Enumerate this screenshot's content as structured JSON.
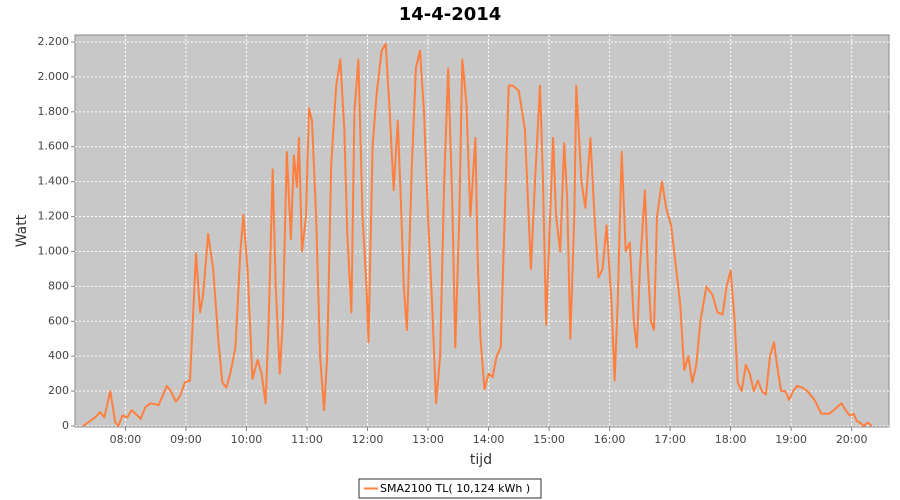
{
  "chart_data": {
    "type": "line",
    "title": "14-4-2014",
    "xlabel": "tijd",
    "ylabel": "Watt",
    "x": [
      "07:18",
      "07:30",
      "07:35",
      "07:39",
      "07:45",
      "07:50",
      "07:53",
      "07:57",
      "08:02",
      "08:06",
      "08:12",
      "08:15",
      "08:20",
      "08:25",
      "08:33",
      "08:41",
      "08:45",
      "08:50",
      "08:54",
      "08:59",
      "09:04",
      "09:10",
      "09:14",
      "09:17",
      "09:22",
      "09:27",
      "09:32",
      "09:36",
      "09:40",
      "09:44",
      "09:49",
      "09:54",
      "09:57",
      "10:01",
      "10:06",
      "10:11",
      "10:15",
      "10:19",
      "10:22",
      "10:26",
      "10:29",
      "10:33",
      "10:36",
      "10:40",
      "10:44",
      "10:47",
      "10:50",
      "10:52",
      "10:55",
      "10:59",
      "11:02",
      "11:05",
      "11:09",
      "11:13",
      "11:17",
      "11:20",
      "11:24",
      "11:29",
      "11:33",
      "11:37",
      "11:40",
      "11:44",
      "11:47",
      "11:51",
      "11:55",
      "11:59",
      "12:01",
      "12:05",
      "12:09",
      "12:14",
      "12:18",
      "12:22",
      "12:26",
      "12:30",
      "12:33",
      "12:36",
      "12:39",
      "12:44",
      "12:48",
      "12:52",
      "12:56",
      "13:00",
      "13:04",
      "13:08",
      "13:12",
      "13:16",
      "13:20",
      "13:24",
      "13:27",
      "13:31",
      "13:34",
      "13:38",
      "13:42",
      "13:47",
      "13:49",
      "13:52",
      "13:56",
      "14:00",
      "14:04",
      "14:08",
      "14:12",
      "14:16",
      "14:20",
      "14:24",
      "14:30",
      "14:36",
      "14:42",
      "14:46",
      "14:51",
      "14:54",
      "14:57",
      "15:01",
      "15:04",
      "15:07",
      "15:11",
      "15:15",
      "15:18",
      "15:21",
      "15:25",
      "15:27",
      "15:32",
      "15:36",
      "15:41",
      "15:45",
      "15:49",
      "15:53",
      "15:57",
      "16:02",
      "16:05",
      "16:08",
      "16:12",
      "16:16",
      "16:20",
      "16:24",
      "16:27",
      "16:30",
      "16:35",
      "16:38",
      "16:41",
      "16:44",
      "16:47",
      "16:52",
      "16:56",
      "17:01",
      "17:06",
      "17:10",
      "17:14",
      "17:18",
      "17:22",
      "17:26",
      "17:30",
      "17:36",
      "17:42",
      "17:47",
      "17:52",
      "17:56",
      "18:00",
      "18:04",
      "18:07",
      "18:11",
      "18:15",
      "18:19",
      "18:23",
      "18:27",
      "18:31",
      "18:35",
      "18:39",
      "18:43",
      "18:46",
      "18:50",
      "18:54",
      "18:58",
      "19:02",
      "19:06",
      "19:11",
      "19:16",
      "19:23",
      "19:30",
      "19:38",
      "19:46",
      "19:50",
      "19:54",
      "19:58",
      "20:02",
      "20:05",
      "20:08",
      "20:12",
      "20:16",
      "20:20"
    ],
    "series": [
      {
        "name": "SMA2100 TL( 10,124 kWh )",
        "color": "#ff7f3f",
        "values": [
          0,
          50,
          80,
          50,
          200,
          20,
          0,
          60,
          50,
          90,
          60,
          40,
          110,
          130,
          120,
          230,
          200,
          140,
          170,
          250,
          260,
          990,
          650,
          750,
          1100,
          900,
          500,
          250,
          220,
          300,
          450,
          1000,
          1210,
          900,
          270,
          380,
          300,
          130,
          600,
          1470,
          800,
          300,
          600,
          1570,
          1070,
          1550,
          1370,
          1650,
          1000,
          1200,
          1820,
          1750,
          1200,
          400,
          90,
          400,
          1500,
          1950,
          2100,
          1700,
          1100,
          650,
          1800,
          2100,
          1200,
          800,
          480,
          1600,
          1900,
          2150,
          2190,
          1800,
          1350,
          1750,
          1300,
          800,
          550,
          1500,
          2050,
          2150,
          1800,
          1200,
          700,
          130,
          400,
          1400,
          2050,
          1300,
          450,
          1200,
          2100,
          1850,
          1200,
          1650,
          1000,
          500,
          210,
          300,
          280,
          400,
          450,
          1200,
          1950,
          1950,
          1920,
          1700,
          900,
          1400,
          1950,
          1400,
          580,
          1200,
          1650,
          1200,
          1000,
          1620,
          1300,
          500,
          1200,
          1950,
          1400,
          1250,
          1650,
          1200,
          850,
          900,
          1150,
          700,
          260,
          700,
          1570,
          1000,
          1050,
          600,
          450,
          900,
          1350,
          900,
          600,
          550,
          1200,
          1400,
          1250,
          1150,
          900,
          700,
          320,
          400,
          250,
          350,
          600,
          800,
          750,
          650,
          640,
          800,
          890,
          600,
          250,
          200,
          350,
          300,
          200,
          260,
          200,
          180,
          400,
          480,
          350,
          200,
          200,
          150,
          200,
          230,
          220,
          200,
          150,
          70,
          70,
          110,
          130,
          90,
          60,
          70,
          30,
          20,
          0,
          20,
          0
        ]
      }
    ],
    "xlim": [
      "07:10",
      "20:37"
    ],
    "xticks": [
      "08:00",
      "09:00",
      "10:00",
      "11:00",
      "12:00",
      "13:00",
      "14:00",
      "15:00",
      "16:00",
      "17:00",
      "18:00",
      "19:00",
      "20:00"
    ],
    "ylim": [
      0,
      2200
    ],
    "yticks": [
      0,
      200,
      400,
      600,
      800,
      {
        "value": 1000,
        "label": "1.000"
      },
      {
        "value": 1200,
        "label": "1.200"
      },
      {
        "value": 1400,
        "label": "1.400"
      },
      {
        "value": 1600,
        "label": "1.600"
      },
      {
        "value": 1800,
        "label": "1.800"
      },
      {
        "value": 2000,
        "label": "2.000"
      },
      {
        "value": 2200,
        "label": "2.200"
      }
    ],
    "grid": true
  }
}
